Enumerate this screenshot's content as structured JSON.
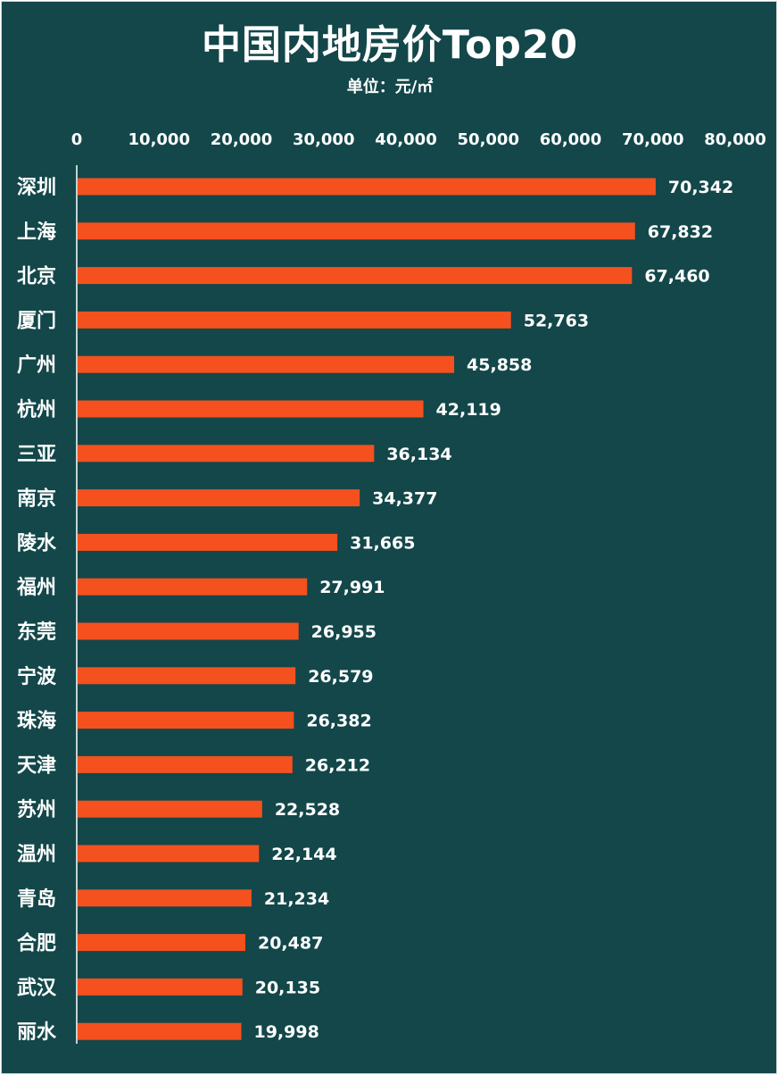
{
  "chart_data": {
    "type": "bar",
    "orientation": "horizontal",
    "title": "中国内地房价Top20",
    "subtitle": "单位：元/㎡",
    "categories": [
      "深圳",
      "上海",
      "北京",
      "厦门",
      "广州",
      "杭州",
      "三亚",
      "南京",
      "陵水",
      "福州",
      "东莞",
      "宁波",
      "珠海",
      "天津",
      "苏州",
      "温州",
      "青岛",
      "合肥",
      "武汉",
      "丽水"
    ],
    "values": [
      70342,
      67832,
      67460,
      52763,
      45858,
      42119,
      36134,
      34377,
      31665,
      27991,
      26955,
      26579,
      26382,
      26212,
      22528,
      22144,
      21234,
      20487,
      20135,
      19998
    ],
    "value_labels": [
      "70,342",
      "67,832",
      "67,460",
      "52,763",
      "45,858",
      "42,119",
      "36,134",
      "34,377",
      "31,665",
      "27,991",
      "26,955",
      "26,579",
      "26,382",
      "26,212",
      "22,528",
      "22,144",
      "21,234",
      "20,487",
      "20,135",
      "19,998"
    ],
    "xlim": [
      0,
      80000
    ],
    "x_ticks": [
      0,
      10000,
      20000,
      30000,
      40000,
      50000,
      60000,
      70000,
      80000
    ],
    "x_tick_labels": [
      "0",
      "10,000",
      "20,000",
      "30,000",
      "40,000",
      "50,000",
      "60,000",
      "70,000",
      "80,000"
    ],
    "x_axis_position": "top",
    "grid": false,
    "legend": "none",
    "colors": {
      "background": "#13474a",
      "bar": "#f4511e",
      "text": "#ffffff",
      "axis": "#ffffff"
    }
  }
}
